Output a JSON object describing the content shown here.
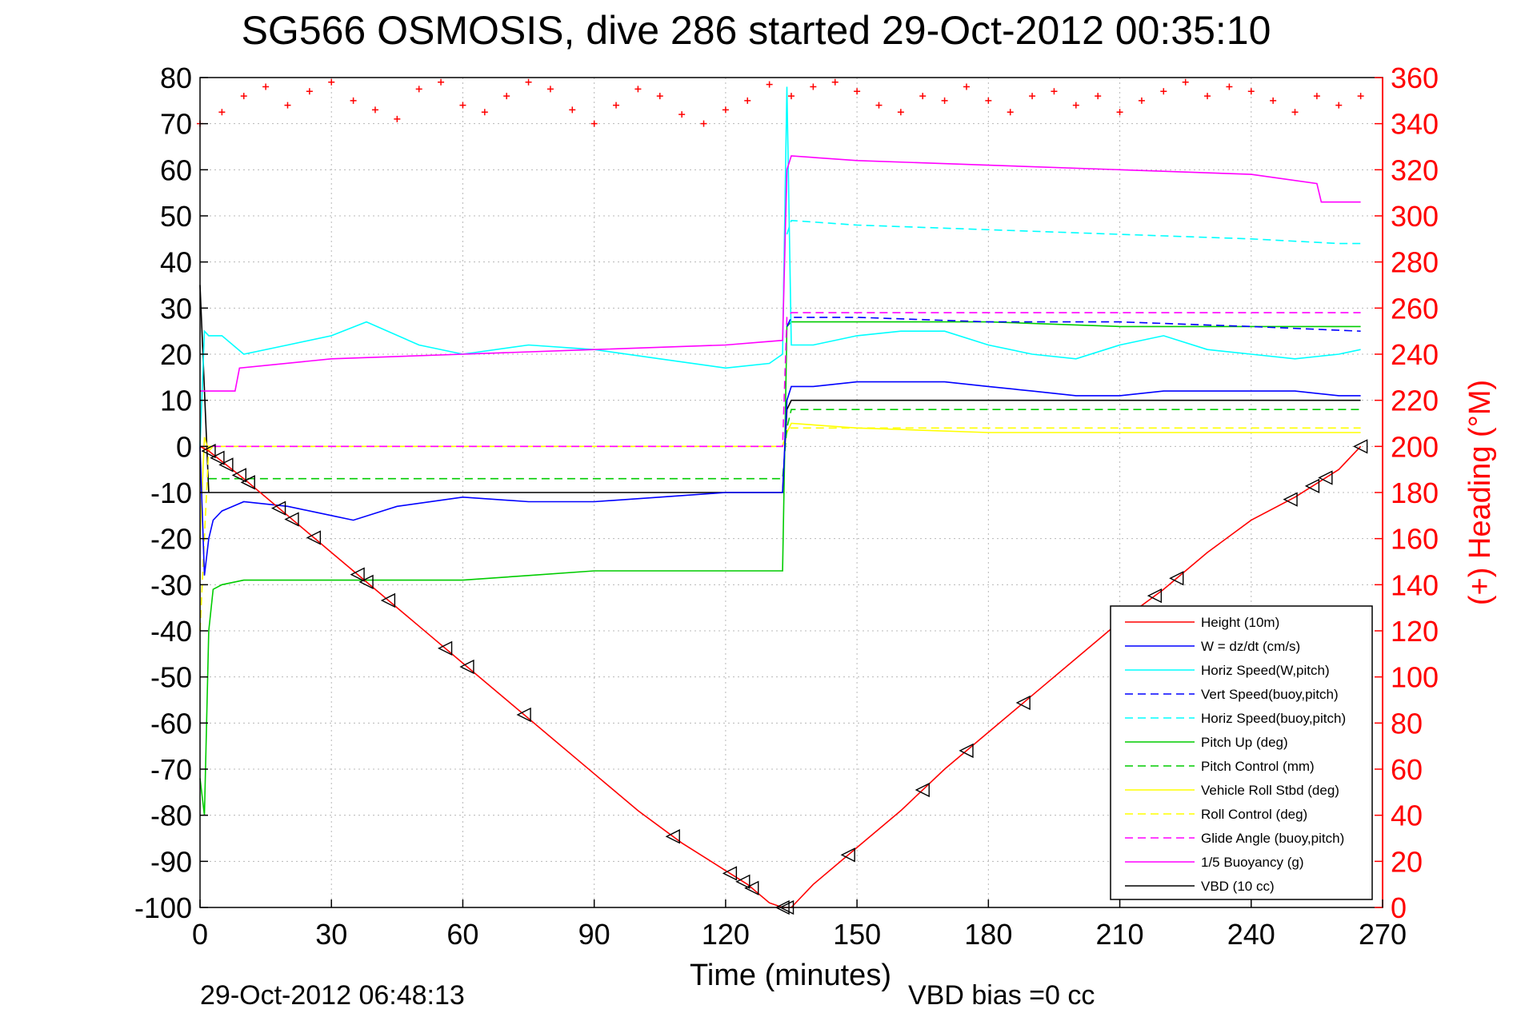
{
  "chart_data": {
    "type": "line",
    "title": "SG566 OSMOSIS, dive 286 started 29-Oct-2012 00:35:10",
    "xlabel": "Time (minutes)",
    "ylabel": "",
    "y2label": "(+) Heading (°M)",
    "footer_left": "29-Oct-2012 06:48:13",
    "footer_right": "VBD bias =0 cc",
    "xlim": [
      0,
      270
    ],
    "ylim": [
      -100,
      80
    ],
    "y2lim": [
      0,
      360
    ],
    "xticks": [
      0,
      30,
      60,
      90,
      120,
      150,
      180,
      210,
      240,
      270
    ],
    "yticks": [
      -100,
      -90,
      -80,
      -70,
      -60,
      -50,
      -40,
      -30,
      -20,
      -10,
      0,
      10,
      20,
      30,
      40,
      50,
      60,
      70,
      80
    ],
    "y2ticks": [
      0,
      20,
      40,
      60,
      80,
      100,
      120,
      140,
      160,
      180,
      200,
      220,
      240,
      260,
      280,
      300,
      320,
      340,
      360
    ],
    "grid": true,
    "legend_position": "bottom-right",
    "colors": {
      "height": "#ff0000",
      "w": "#0000ff",
      "horiz_w": "#00ffff",
      "vert_buoy": "#0000ff",
      "horiz_buoy": "#00ffff",
      "pitch": "#00cc00",
      "pitch_control": "#00cc00",
      "roll": "#ffff00",
      "roll_control": "#ffff00",
      "glide": "#ff00ff",
      "buoyancy": "#ff00ff",
      "vbd": "#000000",
      "heading": "#ff0000"
    },
    "series": [
      {
        "name": "Height (10m)",
        "key": "height",
        "dash": false,
        "x": [
          0,
          2,
          10,
          20,
          30,
          40,
          50,
          60,
          70,
          80,
          90,
          100,
          110,
          120,
          125,
          130,
          133,
          135,
          140,
          150,
          160,
          170,
          180,
          190,
          200,
          210,
          220,
          230,
          240,
          250,
          260,
          265
        ],
        "y": [
          0,
          -1,
          -7,
          -15,
          -23,
          -31,
          -39,
          -47,
          -55,
          -63,
          -71,
          -79,
          -86,
          -92,
          -95,
          -99,
          -100,
          -100,
          -95,
          -87,
          -79,
          -70,
          -62,
          -54,
          -46,
          -38,
          -31,
          -23,
          -16,
          -11,
          -5,
          0
        ]
      },
      {
        "name": "W = dz/dt (cm/s)",
        "key": "w",
        "dash": false,
        "x": [
          0,
          1,
          2,
          3,
          5,
          10,
          20,
          30,
          35,
          45,
          60,
          75,
          90,
          105,
          120,
          130,
          133,
          134,
          135,
          140,
          150,
          160,
          170,
          180,
          190,
          200,
          210,
          220,
          230,
          240,
          250,
          260,
          265
        ],
        "y": [
          0,
          -28,
          -20,
          -16,
          -14,
          -12,
          -13,
          -15,
          -16,
          -13,
          -11,
          -12,
          -12,
          -11,
          -10,
          -10,
          -10,
          10,
          13,
          13,
          14,
          14,
          14,
          13,
          12,
          11,
          11,
          12,
          12,
          12,
          12,
          11,
          11
        ]
      },
      {
        "name": "Horiz Speed(W,pitch)",
        "key": "horiz_w",
        "dash": false,
        "x": [
          0,
          1,
          2,
          5,
          10,
          20,
          30,
          38,
          50,
          60,
          75,
          90,
          105,
          120,
          130,
          133,
          134,
          135,
          140,
          150,
          160,
          170,
          180,
          190,
          200,
          210,
          220,
          230,
          240,
          250,
          260,
          265
        ],
        "y": [
          0,
          25,
          24,
          24,
          20,
          22,
          24,
          27,
          22,
          20,
          22,
          21,
          19,
          17,
          18,
          20,
          78,
          22,
          22,
          24,
          25,
          25,
          22,
          20,
          19,
          22,
          24,
          21,
          20,
          19,
          20,
          21
        ]
      },
      {
        "name": "Vert Speed(buoy,pitch)",
        "key": "vert_buoy",
        "dash": true,
        "x": [
          134,
          135,
          150,
          180,
          210,
          240,
          265
        ],
        "y": [
          26,
          28,
          28,
          27,
          27,
          26,
          25
        ]
      },
      {
        "name": "Horiz Speed(buoy,pitch)",
        "key": "horiz_buoy",
        "dash": true,
        "x": [
          134,
          135,
          150,
          180,
          210,
          240,
          260,
          265
        ],
        "y": [
          46,
          49,
          48,
          47,
          46,
          45,
          44,
          44
        ]
      },
      {
        "name": "Pitch Up (deg)",
        "key": "pitch",
        "dash": false,
        "x": [
          0,
          1,
          2,
          3,
          5,
          10,
          30,
          60,
          75,
          90,
          105,
          120,
          130,
          133,
          134,
          135,
          150,
          180,
          210,
          240,
          265
        ],
        "y": [
          -72,
          -80,
          -40,
          -31,
          -30,
          -29,
          -29,
          -29,
          -28,
          -27,
          -27,
          -27,
          -27,
          -27,
          26,
          27,
          27,
          27,
          26,
          26,
          26
        ]
      },
      {
        "name": "Pitch Control (mm)",
        "key": "pitch_control",
        "dash": true,
        "x": [
          2,
          133,
          134,
          135,
          265
        ],
        "y": [
          -7,
          -7,
          4,
          8,
          8
        ]
      },
      {
        "name": "Vehicle Roll Stbd (deg)",
        "key": "roll",
        "dash": false,
        "x": [
          0,
          1,
          2,
          3,
          5,
          10,
          30,
          60,
          90,
          120,
          133,
          134,
          135,
          150,
          180,
          210,
          240,
          260,
          265
        ],
        "y": [
          -20,
          2,
          -1,
          0,
          0,
          0,
          0,
          0,
          0,
          0,
          0,
          3,
          5,
          4,
          3,
          3,
          3,
          3,
          3
        ]
      },
      {
        "name": "Roll Control (deg)",
        "key": "roll_control",
        "dash": true,
        "x": [
          0,
          2,
          133,
          134,
          265
        ],
        "y": [
          -40,
          0,
          0,
          4,
          4
        ]
      },
      {
        "name": "Glide Angle (buoy,pitch)",
        "key": "glide",
        "dash": true,
        "x": [
          0,
          133,
          134,
          135,
          265
        ],
        "y": [
          0,
          0,
          28,
          29,
          29
        ]
      },
      {
        "name": "1/5 Buoyancy (g)",
        "key": "buoyancy",
        "dash": false,
        "x": [
          0,
          2,
          3,
          8,
          9,
          30,
          60,
          90,
          120,
          133,
          134,
          135,
          150,
          180,
          210,
          240,
          255,
          256,
          265
        ],
        "y": [
          12,
          12,
          12,
          12,
          17,
          19,
          20,
          21,
          22,
          23,
          60,
          63,
          62,
          61,
          60,
          59,
          57,
          53,
          53
        ]
      },
      {
        "name": "VBD (10 cc)",
        "key": "vbd",
        "dash": false,
        "x": [
          0,
          2,
          3,
          10,
          30,
          60,
          90,
          120,
          133,
          134,
          135,
          150,
          180,
          210,
          240,
          265
        ],
        "y": [
          35,
          -10,
          -10,
          -10,
          -10,
          -10,
          -10,
          -10,
          -10,
          8,
          10,
          10,
          10,
          10,
          10,
          10
        ]
      }
    ],
    "heading": {
      "name": "(+) Heading",
      "x": [
        0,
        5,
        10,
        15,
        20,
        25,
        30,
        35,
        40,
        45,
        50,
        55,
        60,
        65,
        70,
        75,
        80,
        85,
        90,
        95,
        100,
        105,
        110,
        115,
        120,
        125,
        130,
        135,
        140,
        145,
        150,
        155,
        160,
        165,
        170,
        175,
        180,
        185,
        190,
        195,
        200,
        205,
        210,
        215,
        220,
        225,
        230,
        235,
        240,
        245,
        250,
        255,
        260,
        265
      ],
      "y": [
        340,
        345,
        352,
        356,
        348,
        354,
        358,
        350,
        346,
        342,
        355,
        358,
        348,
        345,
        352,
        358,
        355,
        346,
        340,
        348,
        355,
        352,
        344,
        340,
        346,
        350,
        357,
        352,
        356,
        358,
        354,
        348,
        345,
        352,
        350,
        356,
        350,
        345,
        352,
        354,
        348,
        352,
        345,
        350,
        354,
        358,
        352,
        356,
        354,
        350,
        345,
        352,
        348,
        352
      ]
    },
    "triangles_x": [
      2,
      4,
      6,
      9,
      11,
      18,
      21,
      26,
      36,
      38,
      43,
      56,
      61,
      74,
      108,
      121,
      124,
      126,
      133,
      134,
      148,
      165,
      175,
      188,
      218,
      223,
      249,
      254,
      257,
      265
    ]
  }
}
